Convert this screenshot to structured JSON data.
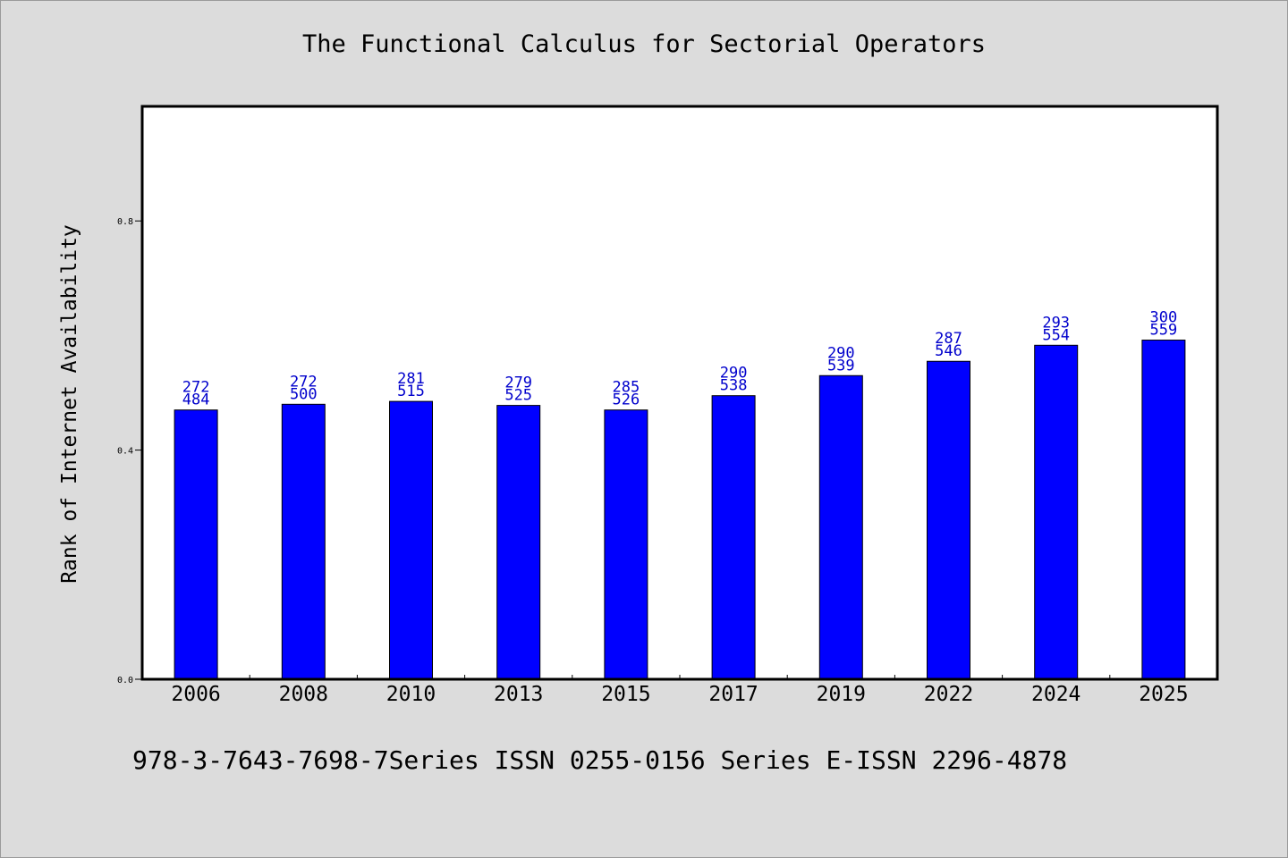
{
  "chart_data": {
    "type": "bar",
    "title": "The Functional Calculus for Sectorial Operators",
    "xlabel": "",
    "ylabel": "Rank of Internet Availability",
    "categories": [
      "2006",
      "2008",
      "2010",
      "2013",
      "2015",
      "2017",
      "2019",
      "2022",
      "2024",
      "2025"
    ],
    "values": [
      0.47,
      0.48,
      0.485,
      0.478,
      0.47,
      0.495,
      0.53,
      0.555,
      0.583,
      0.592
    ],
    "data_labels": [
      [
        "272",
        "484"
      ],
      [
        "272",
        "500"
      ],
      [
        "281",
        "515"
      ],
      [
        "279",
        "525"
      ],
      [
        "285",
        "526"
      ],
      [
        "290",
        "538"
      ],
      [
        "290",
        "539"
      ],
      [
        "287",
        "546"
      ],
      [
        "293",
        "554"
      ],
      [
        "300",
        "559"
      ]
    ],
    "ylim": [
      0,
      1.0
    ],
    "yticks": [
      "0.0",
      "0.4",
      "0.8"
    ],
    "ytick_values": [
      0,
      0.4,
      0.8
    ],
    "grid": false,
    "legend": "none",
    "colors": {
      "bar": "#0000ff",
      "label": "#0000cc",
      "plot_bg": "#ffffff",
      "page_bg": "#dcdcdc"
    }
  },
  "footer": "978-3-7643-7698-7Series ISSN 0255-0156 Series E-ISSN 2296-4878"
}
